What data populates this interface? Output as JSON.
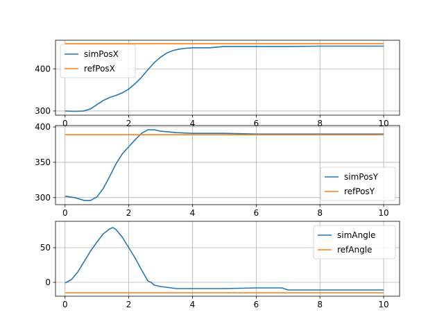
{
  "colors": {
    "sim": "#1f77b4",
    "ref": "#ff7f0e",
    "grid": "#b0b0b0",
    "axis": "#000000"
  },
  "chart_data": [
    {
      "type": "line",
      "title": "",
      "xlabel": "",
      "ylabel": "",
      "xlim": [
        -0.3,
        10.5
      ],
      "ylim": [
        290,
        468
      ],
      "xticks": [
        "0",
        "2",
        "4",
        "6",
        "8",
        "10"
      ],
      "yticks": [
        "300",
        "400"
      ],
      "grid": true,
      "legend_placement": "upper-left",
      "series": [
        {
          "name": "simPosX",
          "color": "#1f77b4",
          "x": [
            0,
            0.3,
            0.6,
            0.8,
            1.0,
            1.2,
            1.4,
            1.6,
            1.8,
            2.0,
            2.2,
            2.4,
            2.6,
            2.8,
            3.0,
            3.2,
            3.4,
            3.6,
            3.8,
            4.0,
            4.5,
            5.0,
            6.0,
            7.0,
            8.0,
            9.0,
            10.0
          ],
          "y": [
            300,
            299,
            300,
            305,
            315,
            325,
            332,
            337,
            343,
            352,
            365,
            380,
            398,
            415,
            428,
            438,
            444,
            447,
            449,
            450,
            450,
            453,
            453,
            453,
            454,
            454,
            454
          ]
        },
        {
          "name": "refPosX",
          "color": "#ff7f0e",
          "x": [
            0,
            10
          ],
          "y": [
            460,
            460
          ]
        }
      ]
    },
    {
      "type": "line",
      "title": "",
      "xlabel": "",
      "ylabel": "",
      "xlim": [
        -0.3,
        10.5
      ],
      "ylim": [
        290,
        402
      ],
      "xticks": [
        "0",
        "2",
        "4",
        "6",
        "8",
        "10"
      ],
      "yticks": [
        "300",
        "350",
        "400"
      ],
      "grid": true,
      "legend_placement": "lower-right",
      "series": [
        {
          "name": "simPosY",
          "color": "#1f77b4",
          "x": [
            0,
            0.3,
            0.6,
            0.8,
            1.0,
            1.2,
            1.4,
            1.6,
            1.8,
            2.0,
            2.2,
            2.4,
            2.6,
            2.8,
            3.0,
            3.5,
            4.0,
            5.0,
            6.0,
            8.0,
            10.0
          ],
          "y": [
            302,
            300,
            296,
            296,
            301,
            313,
            330,
            348,
            362,
            372,
            382,
            391,
            396,
            396,
            394,
            392,
            391,
            391,
            390,
            390,
            390
          ]
        },
        {
          "name": "refPosY",
          "color": "#ff7f0e",
          "x": [
            0,
            10
          ],
          "y": [
            389,
            389
          ]
        }
      ]
    },
    {
      "type": "line",
      "title": "",
      "xlabel": "",
      "ylabel": "",
      "xlim": [
        -0.3,
        10.5
      ],
      "ylim": [
        -20,
        88
      ],
      "xticks": [
        "0",
        "2",
        "4",
        "6",
        "8",
        "10"
      ],
      "yticks": [
        "0",
        "50"
      ],
      "grid": true,
      "legend_placement": "upper-right",
      "series": [
        {
          "name": "simAngle",
          "color": "#1f77b4",
          "x": [
            0,
            0.2,
            0.4,
            0.6,
            0.8,
            1.0,
            1.2,
            1.4,
            1.5,
            1.6,
            1.8,
            2.0,
            2.2,
            2.4,
            2.6,
            2.7,
            2.8,
            3.0,
            3.5,
            4.0,
            5.0,
            6.0,
            6.8,
            7.0,
            8.0,
            9.0,
            10.0
          ],
          "y": [
            -1,
            4,
            15,
            30,
            45,
            58,
            70,
            77,
            79,
            76,
            65,
            50,
            35,
            18,
            2,
            0,
            -4,
            -6,
            -9,
            -9,
            -9,
            -8,
            -8,
            -11,
            -11,
            -11,
            -11
          ]
        },
        {
          "name": "refAngle",
          "color": "#ff7f0e",
          "x": [
            0,
            10
          ],
          "y": [
            -15,
            -15
          ]
        }
      ]
    }
  ]
}
